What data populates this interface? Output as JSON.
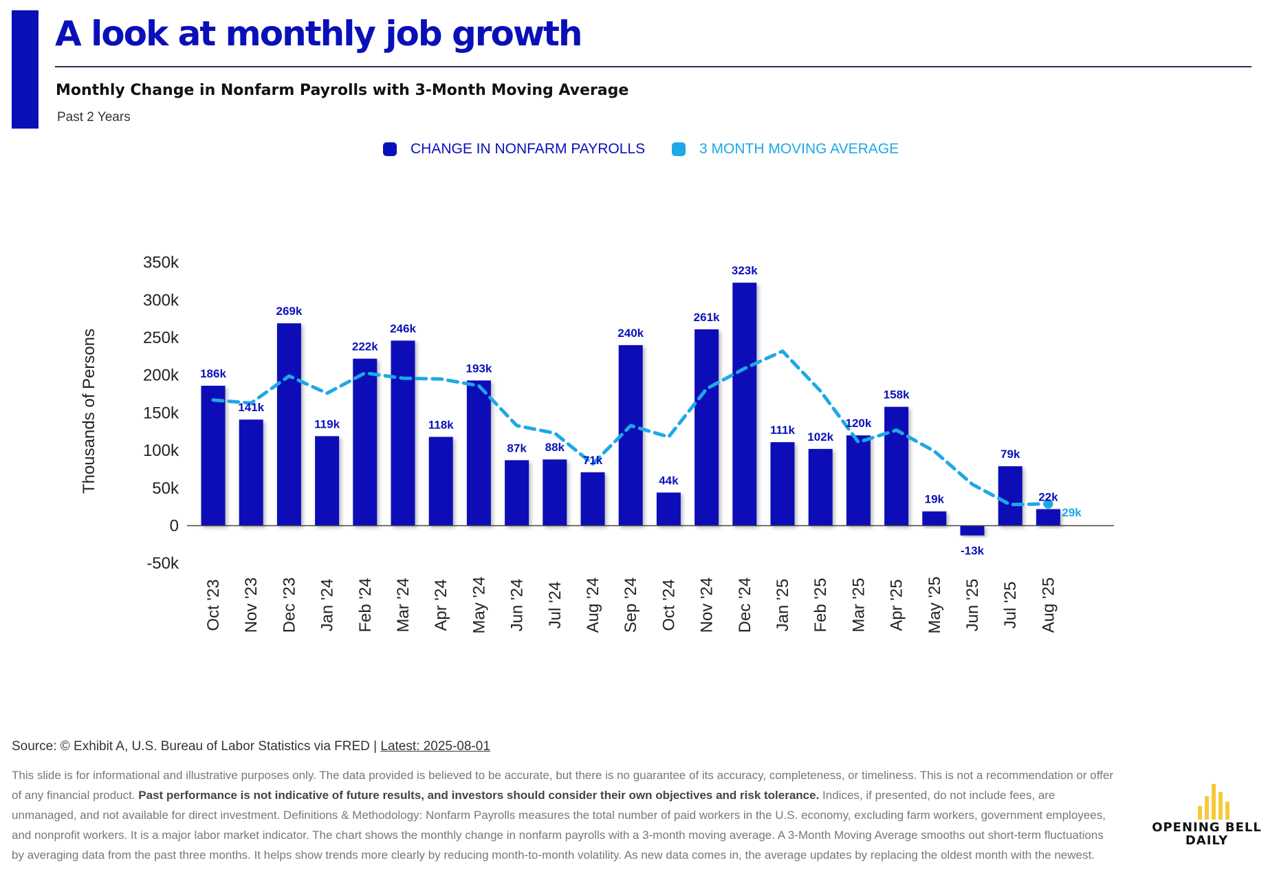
{
  "header": {
    "title": "A look at monthly job growth",
    "subtitle": "Monthly Change in Nonfarm Payrolls with 3-Month Moving Average",
    "period": "Past 2 Years"
  },
  "colors": {
    "accent": "#0a10b8",
    "bars": "#0a10b8",
    "moving_average": "#1ea8e6"
  },
  "chart_data": {
    "type": "bar",
    "title": "Monthly Change in Nonfarm Payrolls with 3-Month Moving Average",
    "ylabel": "Thousands of Persons",
    "ylim": [
      -50,
      350
    ],
    "yticks": [
      -50,
      0,
      50,
      100,
      150,
      200,
      250,
      300,
      350
    ],
    "ytick_labels": [
      "-50k",
      "0",
      "50k",
      "100k",
      "150k",
      "200k",
      "250k",
      "300k",
      "350k"
    ],
    "grid": false,
    "legend_position": "top-center",
    "categories": [
      "Oct '23",
      "Nov '23",
      "Dec '23",
      "Jan '24",
      "Feb '24",
      "Mar '24",
      "Apr '24",
      "May '24",
      "Jun '24",
      "Jul '24",
      "Aug '24",
      "Sep '24",
      "Oct '24",
      "Nov '24",
      "Dec '24",
      "Jan '25",
      "Feb '25",
      "Mar '25",
      "Apr '25",
      "May '25",
      "Jun '25",
      "Jul '25",
      "Aug '25"
    ],
    "series": [
      {
        "name": "CHANGE IN NONFARM PAYROLLS",
        "type": "bar",
        "values": [
          186,
          141,
          269,
          119,
          222,
          246,
          118,
          193,
          87,
          88,
          71,
          240,
          44,
          261,
          323,
          111,
          102,
          120,
          158,
          19,
          -13,
          79,
          22
        ],
        "data_labels": [
          "186k",
          "141k",
          "269k",
          "119k",
          "222k",
          "246k",
          "118k",
          "193k",
          "87k",
          "88k",
          "71k",
          "240k",
          "44k",
          "261k",
          "323k",
          "111k",
          "102k",
          "120k",
          "158k",
          "19k",
          "-13k",
          "79k",
          "22k"
        ]
      },
      {
        "name": "3 MONTH MOVING AVERAGE",
        "type": "line",
        "style": "dashed",
        "values": [
          167,
          163,
          199,
          176,
          203,
          196,
          195,
          186,
          133,
          123,
          82,
          133,
          118,
          182,
          209,
          232,
          179,
          111,
          127,
          99,
          55,
          28,
          29
        ],
        "end_label": "29k"
      }
    ]
  },
  "footer": {
    "source_prefix": "Source: © Exhibit A, U.S. Bureau of Labor Statistics via FRED | ",
    "latest": "Latest: 2025-08-01",
    "disclaimer_1": "This slide is for informational and illustrative purposes only. The data provided is believed to be accurate, but there is no guarantee of its accuracy, completeness, or timeliness. This is not a recommendation or offer of any financial product. ",
    "disclaimer_bold": "Past performance is not indicative of future results, and investors should consider their own objectives and risk tolerance.",
    "disclaimer_2": " Indices, if presented, do not include fees, are unmanaged, and not available for direct investment. Definitions & Methodology: Nonfarm Payrolls measures the total number of paid workers in the U.S. economy, excluding farm workers, government employees, and nonprofit workers. It is a major labor market indicator. The chart shows the monthly change in nonfarm payrolls with a 3-month moving average. A 3-Month Moving Average smooths out short-term fluctuations by averaging data from the past three months. It helps show trends more clearly by reducing month-to-month volatility. As new data comes in, the average updates by replacing the oldest month with the newest."
  },
  "logo": {
    "line1": "OPENING BELL",
    "line2": "DAILY",
    "bar_color": "#f5c93a"
  }
}
